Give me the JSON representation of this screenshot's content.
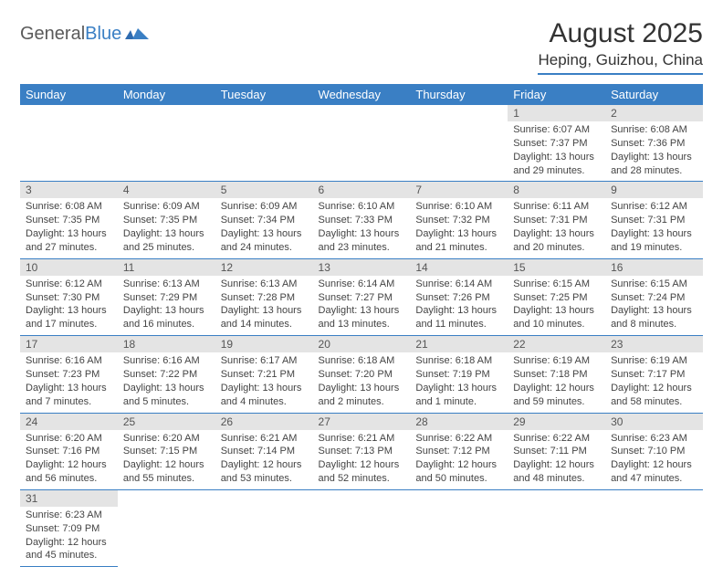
{
  "brand": {
    "word1": "General",
    "word2": "Blue",
    "accent": "#3a7fc4"
  },
  "title": "August 2025",
  "location": "Heping, Guizhou, China",
  "colors": {
    "header_bg": "#3a7fc4",
    "header_text": "#ffffff",
    "daynum_bg": "#e4e4e4",
    "text": "#444444",
    "border": "#3a7fc4",
    "background": "#ffffff"
  },
  "fonts": {
    "title_size": 30,
    "location_size": 17,
    "dayhead_size": 13,
    "body_size": 11
  },
  "weekdays": [
    "Sunday",
    "Monday",
    "Tuesday",
    "Wednesday",
    "Thursday",
    "Friday",
    "Saturday"
  ],
  "weeks": [
    [
      null,
      null,
      null,
      null,
      null,
      {
        "n": "1",
        "sr": "Sunrise: 6:07 AM",
        "ss": "Sunset: 7:37 PM",
        "dl1": "Daylight: 13 hours",
        "dl2": "and 29 minutes."
      },
      {
        "n": "2",
        "sr": "Sunrise: 6:08 AM",
        "ss": "Sunset: 7:36 PM",
        "dl1": "Daylight: 13 hours",
        "dl2": "and 28 minutes."
      }
    ],
    [
      {
        "n": "3",
        "sr": "Sunrise: 6:08 AM",
        "ss": "Sunset: 7:35 PM",
        "dl1": "Daylight: 13 hours",
        "dl2": "and 27 minutes."
      },
      {
        "n": "4",
        "sr": "Sunrise: 6:09 AM",
        "ss": "Sunset: 7:35 PM",
        "dl1": "Daylight: 13 hours",
        "dl2": "and 25 minutes."
      },
      {
        "n": "5",
        "sr": "Sunrise: 6:09 AM",
        "ss": "Sunset: 7:34 PM",
        "dl1": "Daylight: 13 hours",
        "dl2": "and 24 minutes."
      },
      {
        "n": "6",
        "sr": "Sunrise: 6:10 AM",
        "ss": "Sunset: 7:33 PM",
        "dl1": "Daylight: 13 hours",
        "dl2": "and 23 minutes."
      },
      {
        "n": "7",
        "sr": "Sunrise: 6:10 AM",
        "ss": "Sunset: 7:32 PM",
        "dl1": "Daylight: 13 hours",
        "dl2": "and 21 minutes."
      },
      {
        "n": "8",
        "sr": "Sunrise: 6:11 AM",
        "ss": "Sunset: 7:31 PM",
        "dl1": "Daylight: 13 hours",
        "dl2": "and 20 minutes."
      },
      {
        "n": "9",
        "sr": "Sunrise: 6:12 AM",
        "ss": "Sunset: 7:31 PM",
        "dl1": "Daylight: 13 hours",
        "dl2": "and 19 minutes."
      }
    ],
    [
      {
        "n": "10",
        "sr": "Sunrise: 6:12 AM",
        "ss": "Sunset: 7:30 PM",
        "dl1": "Daylight: 13 hours",
        "dl2": "and 17 minutes."
      },
      {
        "n": "11",
        "sr": "Sunrise: 6:13 AM",
        "ss": "Sunset: 7:29 PM",
        "dl1": "Daylight: 13 hours",
        "dl2": "and 16 minutes."
      },
      {
        "n": "12",
        "sr": "Sunrise: 6:13 AM",
        "ss": "Sunset: 7:28 PM",
        "dl1": "Daylight: 13 hours",
        "dl2": "and 14 minutes."
      },
      {
        "n": "13",
        "sr": "Sunrise: 6:14 AM",
        "ss": "Sunset: 7:27 PM",
        "dl1": "Daylight: 13 hours",
        "dl2": "and 13 minutes."
      },
      {
        "n": "14",
        "sr": "Sunrise: 6:14 AM",
        "ss": "Sunset: 7:26 PM",
        "dl1": "Daylight: 13 hours",
        "dl2": "and 11 minutes."
      },
      {
        "n": "15",
        "sr": "Sunrise: 6:15 AM",
        "ss": "Sunset: 7:25 PM",
        "dl1": "Daylight: 13 hours",
        "dl2": "and 10 minutes."
      },
      {
        "n": "16",
        "sr": "Sunrise: 6:15 AM",
        "ss": "Sunset: 7:24 PM",
        "dl1": "Daylight: 13 hours",
        "dl2": "and 8 minutes."
      }
    ],
    [
      {
        "n": "17",
        "sr": "Sunrise: 6:16 AM",
        "ss": "Sunset: 7:23 PM",
        "dl1": "Daylight: 13 hours",
        "dl2": "and 7 minutes."
      },
      {
        "n": "18",
        "sr": "Sunrise: 6:16 AM",
        "ss": "Sunset: 7:22 PM",
        "dl1": "Daylight: 13 hours",
        "dl2": "and 5 minutes."
      },
      {
        "n": "19",
        "sr": "Sunrise: 6:17 AM",
        "ss": "Sunset: 7:21 PM",
        "dl1": "Daylight: 13 hours",
        "dl2": "and 4 minutes."
      },
      {
        "n": "20",
        "sr": "Sunrise: 6:18 AM",
        "ss": "Sunset: 7:20 PM",
        "dl1": "Daylight: 13 hours",
        "dl2": "and 2 minutes."
      },
      {
        "n": "21",
        "sr": "Sunrise: 6:18 AM",
        "ss": "Sunset: 7:19 PM",
        "dl1": "Daylight: 13 hours",
        "dl2": "and 1 minute."
      },
      {
        "n": "22",
        "sr": "Sunrise: 6:19 AM",
        "ss": "Sunset: 7:18 PM",
        "dl1": "Daylight: 12 hours",
        "dl2": "and 59 minutes."
      },
      {
        "n": "23",
        "sr": "Sunrise: 6:19 AM",
        "ss": "Sunset: 7:17 PM",
        "dl1": "Daylight: 12 hours",
        "dl2": "and 58 minutes."
      }
    ],
    [
      {
        "n": "24",
        "sr": "Sunrise: 6:20 AM",
        "ss": "Sunset: 7:16 PM",
        "dl1": "Daylight: 12 hours",
        "dl2": "and 56 minutes."
      },
      {
        "n": "25",
        "sr": "Sunrise: 6:20 AM",
        "ss": "Sunset: 7:15 PM",
        "dl1": "Daylight: 12 hours",
        "dl2": "and 55 minutes."
      },
      {
        "n": "26",
        "sr": "Sunrise: 6:21 AM",
        "ss": "Sunset: 7:14 PM",
        "dl1": "Daylight: 12 hours",
        "dl2": "and 53 minutes."
      },
      {
        "n": "27",
        "sr": "Sunrise: 6:21 AM",
        "ss": "Sunset: 7:13 PM",
        "dl1": "Daylight: 12 hours",
        "dl2": "and 52 minutes."
      },
      {
        "n": "28",
        "sr": "Sunrise: 6:22 AM",
        "ss": "Sunset: 7:12 PM",
        "dl1": "Daylight: 12 hours",
        "dl2": "and 50 minutes."
      },
      {
        "n": "29",
        "sr": "Sunrise: 6:22 AM",
        "ss": "Sunset: 7:11 PM",
        "dl1": "Daylight: 12 hours",
        "dl2": "and 48 minutes."
      },
      {
        "n": "30",
        "sr": "Sunrise: 6:23 AM",
        "ss": "Sunset: 7:10 PM",
        "dl1": "Daylight: 12 hours",
        "dl2": "and 47 minutes."
      }
    ],
    [
      {
        "n": "31",
        "sr": "Sunrise: 6:23 AM",
        "ss": "Sunset: 7:09 PM",
        "dl1": "Daylight: 12 hours",
        "dl2": "and 45 minutes."
      },
      null,
      null,
      null,
      null,
      null,
      null
    ]
  ]
}
